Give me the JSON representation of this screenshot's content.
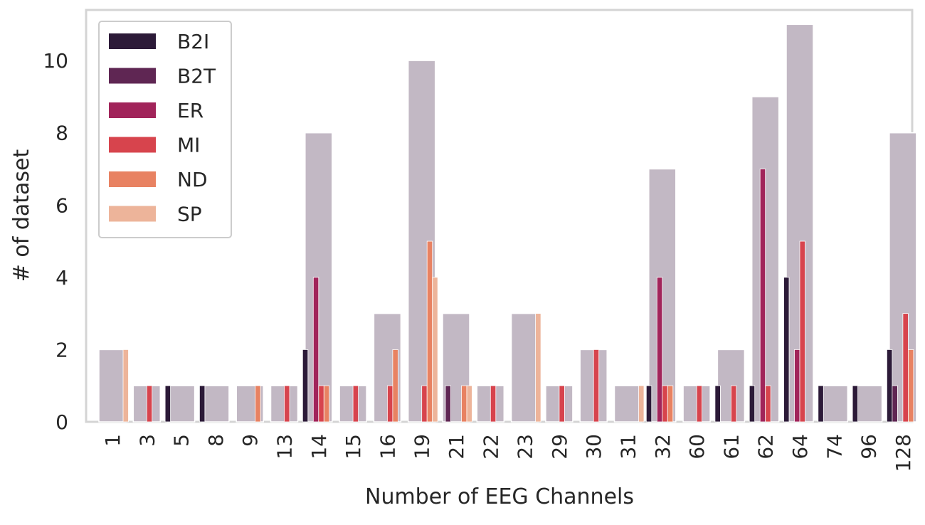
{
  "chart_data": {
    "type": "bar",
    "xlabel": "Number of EEG Channels",
    "ylabel": "# of dataset",
    "ylim": [
      0,
      11.4
    ],
    "yticks": [
      0,
      2,
      4,
      6,
      8,
      10
    ],
    "grid": false,
    "legend_position": "top-left",
    "categories": [
      "1",
      "3",
      "5",
      "8",
      "9",
      "13",
      "14",
      "15",
      "16",
      "19",
      "21",
      "22",
      "23",
      "29",
      "30",
      "31",
      "32",
      "60",
      "61",
      "62",
      "64",
      "74",
      "96",
      "128"
    ],
    "total": {
      "name": "",
      "color": "#c2b8c4",
      "values": [
        2,
        1,
        1,
        1,
        1,
        1,
        8,
        1,
        3,
        10,
        3,
        1,
        3,
        1,
        2,
        1,
        7,
        1,
        2,
        9,
        11,
        1,
        1,
        8
      ]
    },
    "series": [
      {
        "name": "B2I",
        "color": "#2c1a38",
        "values": [
          0,
          0,
          1,
          1,
          0,
          0,
          2,
          0,
          0,
          0,
          0,
          0,
          0,
          0,
          0,
          0,
          1,
          0,
          1,
          1,
          4,
          1,
          1,
          2
        ]
      },
      {
        "name": "B2T",
        "color": "#5f2653",
        "values": [
          0,
          0,
          0,
          0,
          0,
          0,
          0,
          0,
          0,
          0,
          1,
          0,
          0,
          0,
          0,
          0,
          0,
          0,
          0,
          0,
          0,
          0,
          0,
          1
        ]
      },
      {
        "name": "ER",
        "color": "#a1245a",
        "values": [
          0,
          0,
          0,
          0,
          0,
          0,
          4,
          0,
          0,
          0,
          0,
          0,
          0,
          0,
          0,
          0,
          4,
          0,
          0,
          7,
          2,
          0,
          0,
          0
        ]
      },
      {
        "name": "MI",
        "color": "#d7444d",
        "values": [
          0,
          1,
          0,
          0,
          0,
          1,
          1,
          1,
          1,
          1,
          0,
          1,
          0,
          1,
          2,
          0,
          1,
          1,
          1,
          1,
          5,
          0,
          0,
          3
        ]
      },
      {
        "name": "ND",
        "color": "#e88262",
        "values": [
          0,
          0,
          0,
          0,
          1,
          0,
          1,
          0,
          2,
          5,
          1,
          0,
          0,
          0,
          0,
          0,
          1,
          0,
          0,
          0,
          0,
          0,
          0,
          2
        ]
      },
      {
        "name": "SP",
        "color": "#edb49a",
        "values": [
          2,
          0,
          0,
          0,
          0,
          0,
          0,
          0,
          0,
          4,
          1,
          0,
          3,
          0,
          0,
          1,
          0,
          0,
          0,
          0,
          0,
          0,
          0,
          0
        ]
      }
    ]
  }
}
